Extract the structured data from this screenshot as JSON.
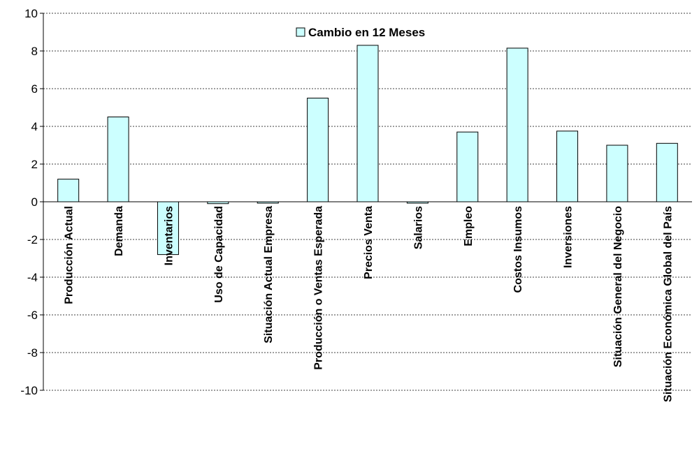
{
  "chart_data": {
    "type": "bar",
    "title": "",
    "xlabel": "",
    "ylabel": "",
    "ylim": [
      -10,
      10
    ],
    "yticks": [
      10,
      8,
      6,
      4,
      2,
      0,
      -2,
      -4,
      -6,
      -8,
      -10
    ],
    "grid": "horizontal dashed",
    "legend": "top-center",
    "categories": [
      "Producción Actual",
      "Demanda",
      "Inventarios",
      "Uso de Capacidad",
      "Situación Actual Empresa",
      "Producción o Ventas Esperada",
      "Precios Venta",
      "Salarios",
      "Empleo",
      "Costos Insumos",
      "Inversiones",
      "Situación General del Negocio",
      "Situación Económica Global del País"
    ],
    "series": [
      {
        "name": "Cambio en 12 Meses",
        "color": "#ccffff",
        "values": [
          1.2,
          4.5,
          -2.8,
          -0.1,
          -0.05,
          5.5,
          8.3,
          -0.05,
          3.7,
          8.15,
          3.75,
          3.0,
          3.1
        ]
      }
    ]
  }
}
